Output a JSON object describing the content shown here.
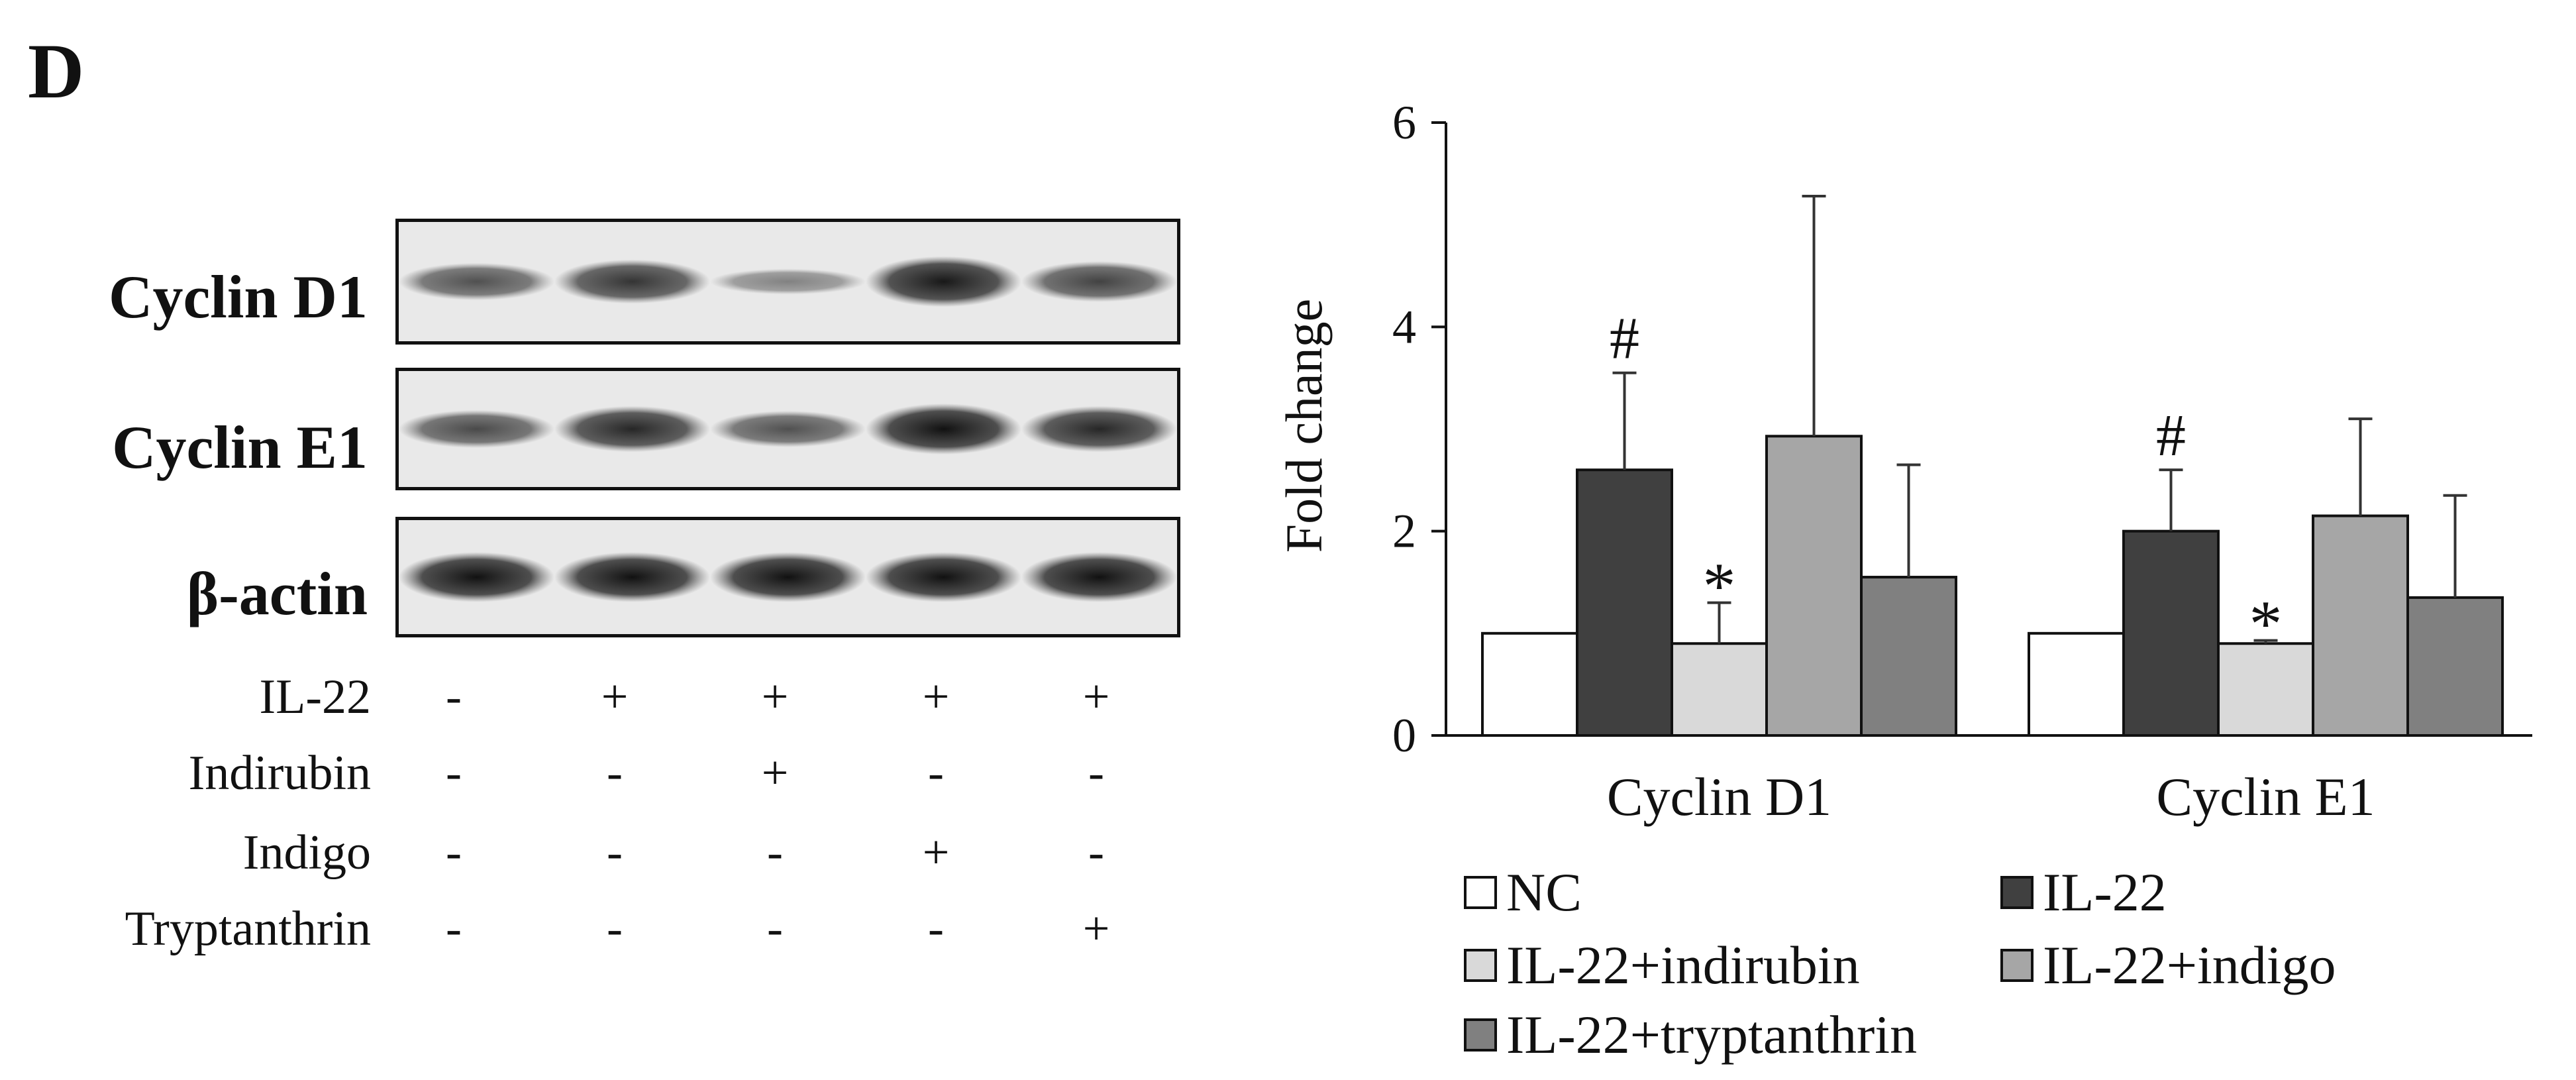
{
  "panel_letter": "D",
  "blots": [
    {
      "label": "Cyclin D1",
      "intensities": [
        0.55,
        0.75,
        0.2,
        0.95,
        0.65
      ]
    },
    {
      "label": "Cyclin E1",
      "intensities": [
        0.6,
        0.85,
        0.55,
        1.0,
        0.85
      ]
    },
    {
      "label": "β-actin",
      "intensities": [
        1.0,
        1.0,
        1.0,
        1.0,
        1.0
      ]
    }
  ],
  "treatments": [
    {
      "label": "IL-22",
      "signs": [
        "-",
        "+",
        "+",
        "+",
        "+"
      ]
    },
    {
      "label": "Indirubin",
      "signs": [
        "-",
        "-",
        "+",
        "-",
        "-"
      ]
    },
    {
      "label": "Indigo",
      "signs": [
        "-",
        "-",
        "-",
        "+",
        "-"
      ]
    },
    {
      "label": "Tryptanthrin",
      "signs": [
        "-",
        "-",
        "-",
        "-",
        "+"
      ]
    }
  ],
  "chart_data": {
    "type": "bar",
    "title": "",
    "xlabel": "",
    "ylabel": "Fold change",
    "ylim": [
      0,
      6
    ],
    "yticks": [
      "0",
      "2",
      "4",
      "6"
    ],
    "categories": [
      "Cyclin D1",
      "Cyclin E1"
    ],
    "series": [
      {
        "name": "NC",
        "color": "#ffffff",
        "values": [
          1.0,
          1.0
        ],
        "errors": [
          0,
          0
        ],
        "marks": [
          "",
          ""
        ]
      },
      {
        "name": "IL-22",
        "color": "#404040",
        "values": [
          2.6,
          2.0
        ],
        "errors": [
          0.95,
          0.6
        ],
        "marks": [
          "#",
          "#"
        ]
      },
      {
        "name": "IL-22+indirubin",
        "color": "#d9d9d9",
        "values": [
          0.9,
          0.9
        ],
        "errors": [
          0.4,
          0.03
        ],
        "marks": [
          "*",
          "*"
        ]
      },
      {
        "name": "IL-22+indigo",
        "color": "#a6a6a6",
        "values": [
          2.93,
          2.15
        ],
        "errors": [
          2.35,
          0.95
        ],
        "marks": [
          "",
          ""
        ]
      },
      {
        "name": "IL-22+tryptanthrin",
        "color": "#808080",
        "values": [
          1.55,
          1.35
        ],
        "errors": [
          1.1,
          1.0
        ],
        "marks": [
          "",
          ""
        ]
      }
    ],
    "grid": false,
    "legend_position": "bottom"
  }
}
